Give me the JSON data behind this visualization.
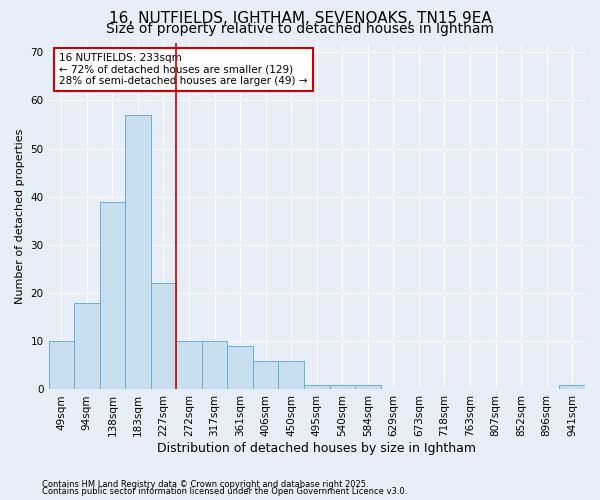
{
  "title1": "16, NUTFIELDS, IGHTHAM, SEVENOAKS, TN15 9EA",
  "title2": "Size of property relative to detached houses in Ightham",
  "xlabel": "Distribution of detached houses by size in Ightham",
  "ylabel": "Number of detached properties",
  "categories": [
    "49sqm",
    "94sqm",
    "138sqm",
    "183sqm",
    "227sqm",
    "272sqm",
    "317sqm",
    "361sqm",
    "406sqm",
    "450sqm",
    "495sqm",
    "540sqm",
    "584sqm",
    "629sqm",
    "673sqm",
    "718sqm",
    "763sqm",
    "807sqm",
    "852sqm",
    "896sqm",
    "941sqm"
  ],
  "values": [
    10,
    18,
    39,
    57,
    22,
    10,
    10,
    9,
    6,
    6,
    1,
    1,
    1,
    0,
    0,
    0,
    0,
    0,
    0,
    0,
    1
  ],
  "bar_color": "#c9dff0",
  "bar_edge_color": "#6aaed6",
  "vline_x_index": 4,
  "vline_color": "#cc0000",
  "annotation_text": "16 NUTFIELDS: 233sqm\n← 72% of detached houses are smaller (129)\n28% of semi-detached houses are larger (49) →",
  "annotation_box_color": "white",
  "annotation_box_edge": "#cc0000",
  "ylim": [
    0,
    72
  ],
  "yticks": [
    0,
    10,
    20,
    30,
    40,
    50,
    60,
    70
  ],
  "footer1": "Contains HM Land Registry data © Crown copyright and database right 2025.",
  "footer2": "Contains public sector information licensed under the Open Government Licence v3.0.",
  "bg_color": "#e8eef8",
  "grid_color": "#ffffff",
  "title_fontsize": 11,
  "subtitle_fontsize": 10,
  "xlabel_fontsize": 9,
  "ylabel_fontsize": 8,
  "tick_fontsize": 7.5,
  "annotation_fontsize": 7.5,
  "footer_fontsize": 6
}
